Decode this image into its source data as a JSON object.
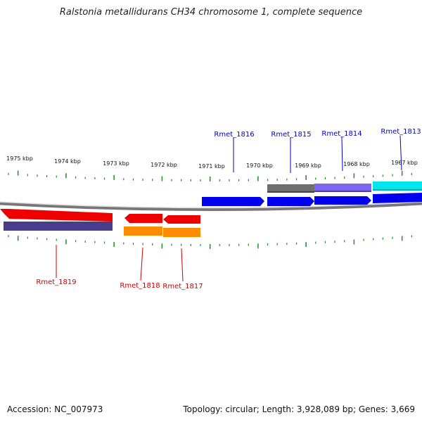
{
  "title": "Ralstonia metallidurans CH34 chromosome 1, complete sequence",
  "footer": {
    "accession": "Accession: NC_007973",
    "summary": "Topology: circular; Length: 3,928,089 bp; Genes: 3,669"
  },
  "colors": {
    "backbone": "#808080",
    "tick": "#228b22",
    "top_label": "#0000cc",
    "bottom_label": "#cc0000"
  },
  "kbp_labels": [
    "1975 kbp",
    "1974 kbp",
    "1973 kbp",
    "1972 kbp",
    "1971 kbp",
    "1970 kbp",
    "1969 kbp",
    "1968 kbp",
    "1967 kbp"
  ],
  "genes_top": [
    "Rmet_1816",
    "Rmet_1815",
    "Rmet_1814",
    "Rmet_1813"
  ],
  "genes_bottom": [
    "Rmet_1819",
    "Rmet_1818",
    "Rmet_1817"
  ]
}
